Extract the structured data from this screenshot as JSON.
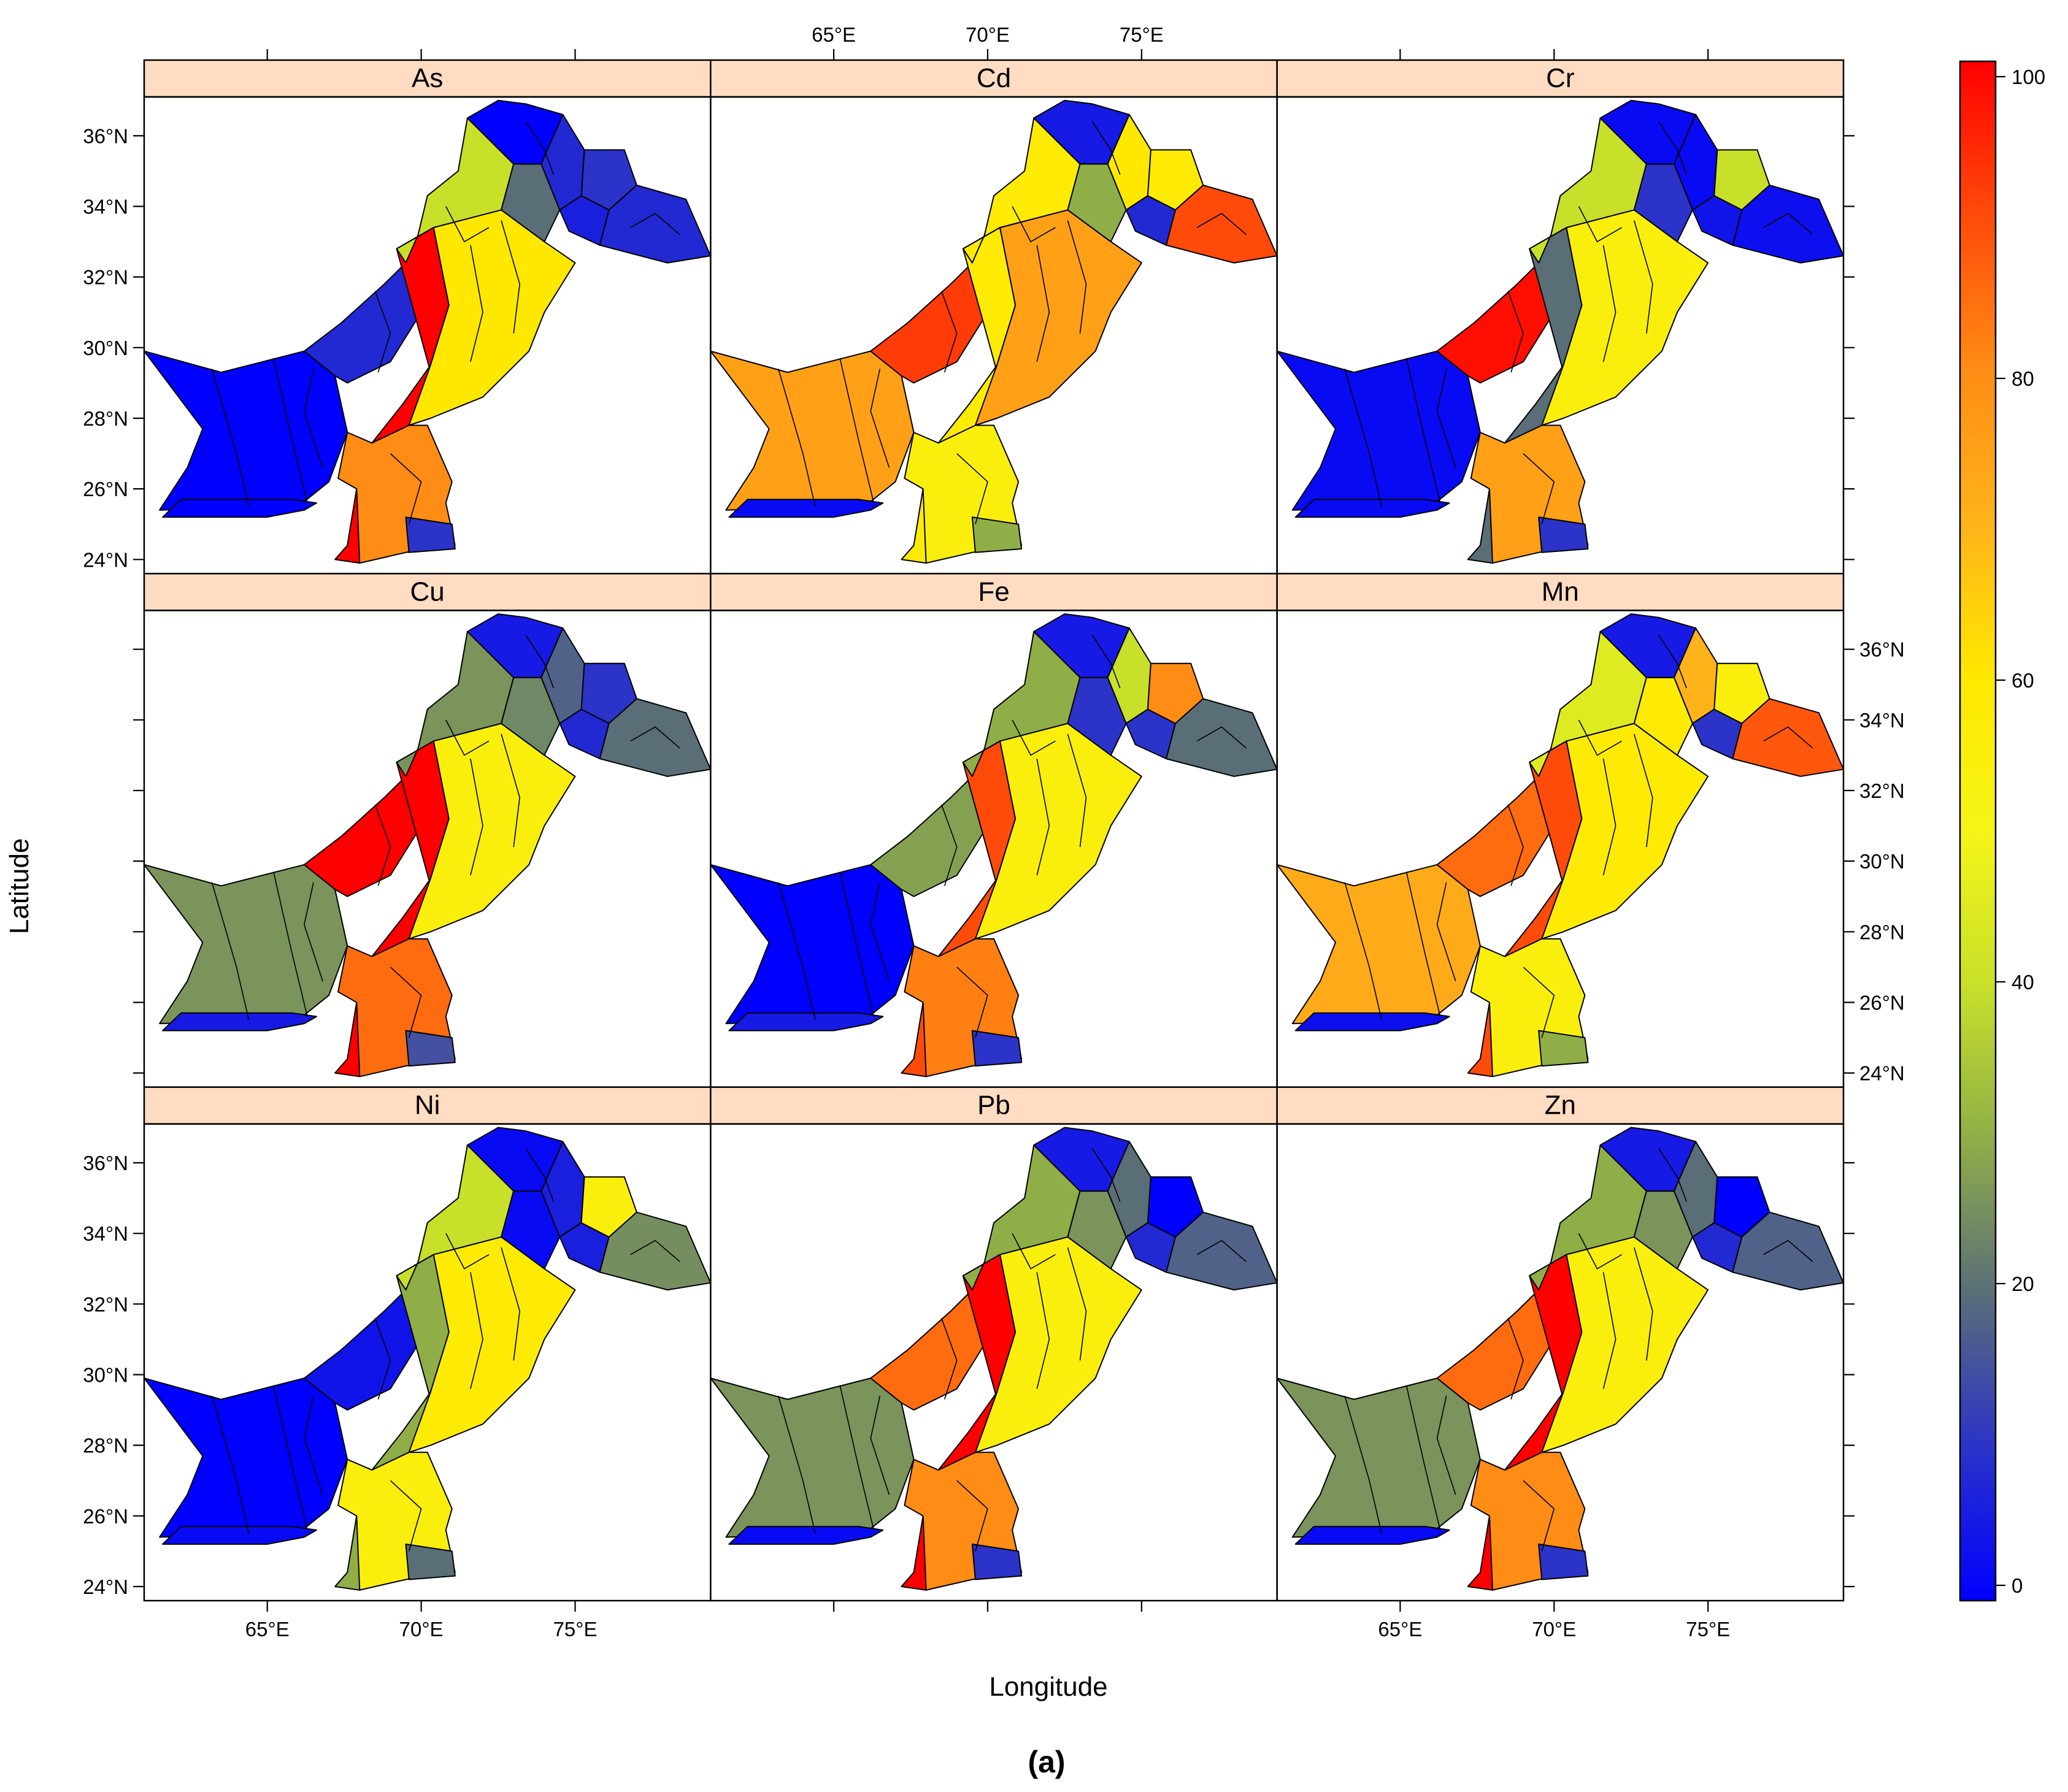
{
  "figure": {
    "caption": "(a)",
    "xlabel": "Longitude",
    "ylabel": "Latitude"
  },
  "panels": [
    {
      "name": "As",
      "palette": [
        0,
        8,
        0,
        100,
        80,
        10,
        60,
        40,
        20,
        0,
        8,
        6,
        10,
        8
      ],
      "fill_index": {
        "west": 0,
        "south_coast": 1,
        "indus": 2,
        "ne_red": 3,
        "ne_orange": 4,
        "ne_dark": 5,
        "ne_yellow": 6,
        "ne_green": 7,
        "north_west": 8,
        "punjab": 9,
        "sindh": 10,
        "kp": 11,
        "far_ne": 12,
        "south_tip": 13
      }
    },
    {
      "name": "Cd",
      "palette": [
        75,
        92,
        2,
        58,
        55,
        30,
        75,
        58,
        30,
        5,
        60,
        8,
        58,
        90
      ]
    },
    {
      "name": "Cr",
      "palette": [
        2,
        98,
        2,
        20,
        75,
        10,
        55,
        40,
        10,
        2,
        2,
        4,
        40,
        3
      ]
    },
    {
      "name": "Cu",
      "palette": [
        26,
        100,
        5,
        100,
        85,
        15,
        55,
        26,
        24,
        5,
        18,
        8,
        10,
        20
      ]
    },
    {
      "name": "Fe",
      "palette": [
        0,
        28,
        5,
        90,
        82,
        10,
        55,
        30,
        10,
        5,
        40,
        10,
        80,
        20
      ]
    },
    {
      "name": "Mn",
      "palette": [
        72,
        85,
        3,
        90,
        55,
        30,
        58,
        45,
        58,
        5,
        70,
        10,
        55,
        88
      ]
    },
    {
      "name": "Ni",
      "palette": [
        0,
        4,
        2,
        30,
        55,
        20,
        58,
        40,
        2,
        2,
        6,
        6,
        55,
        25
      ]
    },
    {
      "name": "Pb",
      "palette": [
        26,
        85,
        2,
        100,
        80,
        10,
        55,
        30,
        26,
        5,
        20,
        8,
        0,
        18
      ]
    },
    {
      "name": "Zn",
      "palette": [
        26,
        85,
        2,
        100,
        80,
        10,
        55,
        30,
        26,
        5,
        20,
        8,
        0,
        18
      ]
    }
  ],
  "x_ticks": [
    "65°E",
    "70°E",
    "75°E"
  ],
  "y_ticks": [
    "24°N",
    "26°N",
    "28°N",
    "30°N",
    "32°N",
    "34°N",
    "36°N"
  ],
  "colorbar": {
    "min": 0,
    "max": 100,
    "ticks": [
      {
        "value": 0,
        "label": "0"
      },
      {
        "value": 20,
        "label": "20"
      },
      {
        "value": 40,
        "label": "40"
      },
      {
        "value": 60,
        "label": "60"
      },
      {
        "value": 80,
        "label": "80"
      },
      {
        "value": 100,
        "label": "100"
      }
    ],
    "stops": [
      {
        "value": 0,
        "color": "#0000ff"
      },
      {
        "value": 10,
        "color": "#2b33c8"
      },
      {
        "value": 20,
        "color": "#5a6e78"
      },
      {
        "value": 30,
        "color": "#8fae48"
      },
      {
        "value": 40,
        "color": "#c8e02a"
      },
      {
        "value": 50,
        "color": "#f5f518"
      },
      {
        "value": 60,
        "color": "#ffe800"
      },
      {
        "value": 70,
        "color": "#ffb31a"
      },
      {
        "value": 80,
        "color": "#ff8c14"
      },
      {
        "value": 90,
        "color": "#ff4b0a"
      },
      {
        "value": 100,
        "color": "#ff0000"
      }
    ]
  },
  "colors": {
    "strip": "#ffdcc2",
    "border": "#000000"
  }
}
